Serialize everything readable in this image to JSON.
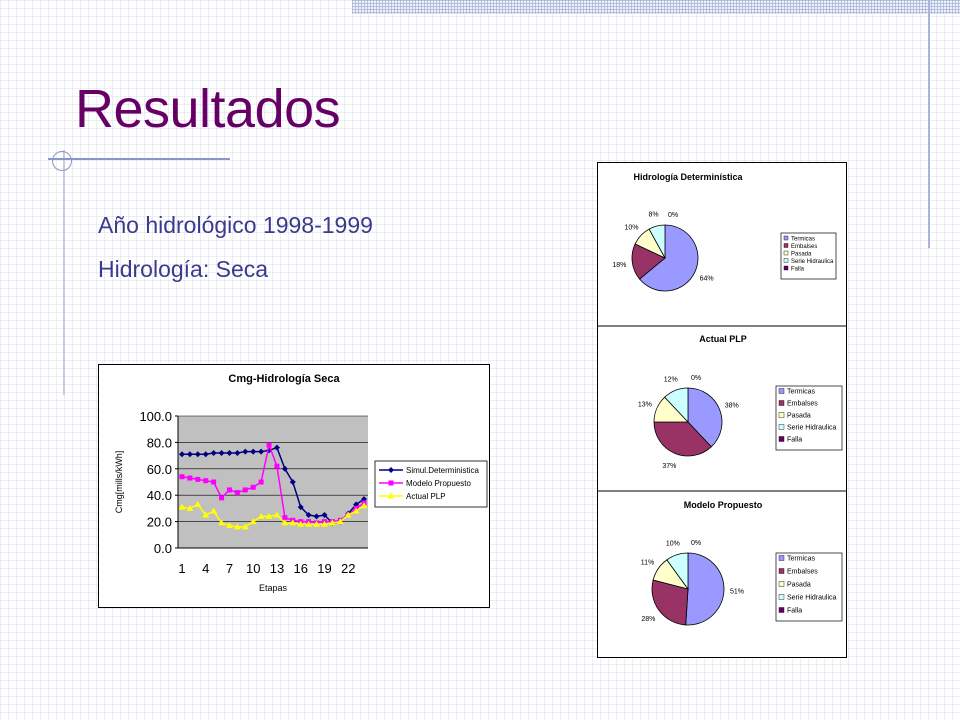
{
  "slide": {
    "title": "Resultados",
    "lines": [
      "Año hidrológico 1998-1999",
      "Hidrología: Seca"
    ]
  },
  "chart_data": [
    {
      "type": "line",
      "title": "Cmg-Hidrología Seca",
      "xlabel": "Etapas",
      "ylabel": "Cmg[mills/kWh]",
      "ylim": [
        0,
        100
      ],
      "y_ticks": [
        "0.0",
        "20.0",
        "40.0",
        "60.0",
        "80.0",
        "100.0"
      ],
      "x_tick_labels": [
        "1",
        "4",
        "7",
        "10",
        "13",
        "16",
        "19",
        "22"
      ],
      "x": [
        1,
        2,
        3,
        4,
        5,
        6,
        7,
        8,
        9,
        10,
        11,
        12,
        13,
        14,
        15,
        16,
        17,
        18,
        19,
        20,
        21,
        22,
        23,
        24
      ],
      "grid": true,
      "legend": "right",
      "series": [
        {
          "name": "Simul.Deterministica",
          "color": "#000080",
          "marker": "diamond",
          "values": [
            71,
            71,
            71,
            71,
            72,
            72,
            72,
            72,
            73,
            73,
            73,
            74,
            76,
            60,
            50,
            31,
            25,
            24,
            25,
            19,
            20,
            26,
            33,
            37
          ]
        },
        {
          "name": "Modelo Propuesto",
          "color": "#ff00ff",
          "marker": "square",
          "values": [
            54,
            53,
            52,
            51,
            50,
            38,
            44,
            42,
            44,
            46,
            50,
            78,
            62,
            23,
            21,
            20,
            20,
            19,
            20,
            20,
            21,
            25,
            30,
            34
          ]
        },
        {
          "name": "Actual PLP",
          "color": "#ffff00",
          "marker": "triangle",
          "values": [
            31,
            30,
            33,
            25,
            28,
            19,
            17,
            16,
            16,
            20,
            24,
            24,
            25,
            19,
            19,
            18,
            18,
            18,
            18,
            19,
            20,
            25,
            28,
            32
          ]
        }
      ]
    },
    {
      "type": "pie",
      "title": "Hidrología Determinística",
      "legend": "right",
      "categories": [
        "Termicas",
        "Embalses",
        "Pasada",
        "Serie Hidraulica",
        "Falla"
      ],
      "values": [
        64,
        18,
        10,
        8,
        0
      ],
      "labels": [
        "64%",
        "18%",
        "10%",
        "8%",
        "0%"
      ]
    },
    {
      "type": "pie",
      "title": "Actual PLP",
      "legend": "right",
      "categories": [
        "Termicas",
        "Embalses",
        "Pasada",
        "Serie Hidraulica",
        "Falla"
      ],
      "values": [
        38,
        37,
        13,
        12,
        0
      ],
      "labels": [
        "38%",
        "37%",
        "13%",
        "12%",
        "0%"
      ]
    },
    {
      "type": "pie",
      "title": "Modelo Propuesto",
      "legend": "right",
      "categories": [
        "Termicas",
        "Embalses",
        "Pasada",
        "Serie Hidraulica",
        "Falla"
      ],
      "values": [
        51,
        28,
        11,
        10,
        0
      ],
      "labels": [
        "51%",
        "28%",
        "11%",
        "10%",
        "0%"
      ]
    }
  ],
  "pie_colors": [
    "#9999ff",
    "#993366",
    "#ffffcc",
    "#ccffff",
    "#660066"
  ]
}
